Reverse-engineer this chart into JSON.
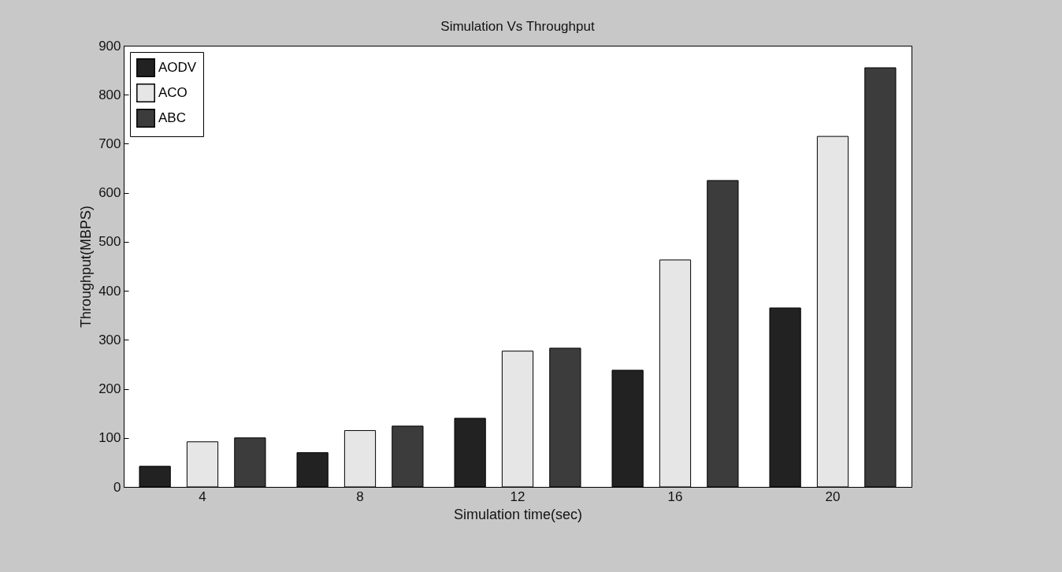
{
  "chart_data": {
    "type": "bar",
    "title": "Simulation Vs Throughput",
    "xlabel": "Simulation time(sec)",
    "ylabel": "Throughput(MBPS)",
    "categories": [
      "4",
      "8",
      "12",
      "16",
      "20"
    ],
    "series": [
      {
        "name": "AODV",
        "color": "#222222",
        "values": [
          42,
          70,
          140,
          238,
          365
        ]
      },
      {
        "name": "ACO",
        "color": "#e6e6e6",
        "values": [
          92,
          115,
          277,
          463,
          715
        ]
      },
      {
        "name": "ABC",
        "color": "#3c3c3c",
        "values": [
          100,
          124,
          283,
          625,
          855
        ]
      }
    ],
    "ylim": [
      0,
      900
    ],
    "yticks": [
      0,
      100,
      200,
      300,
      400,
      500,
      600,
      700,
      800,
      900
    ],
    "grid": false,
    "legend": "top left"
  }
}
